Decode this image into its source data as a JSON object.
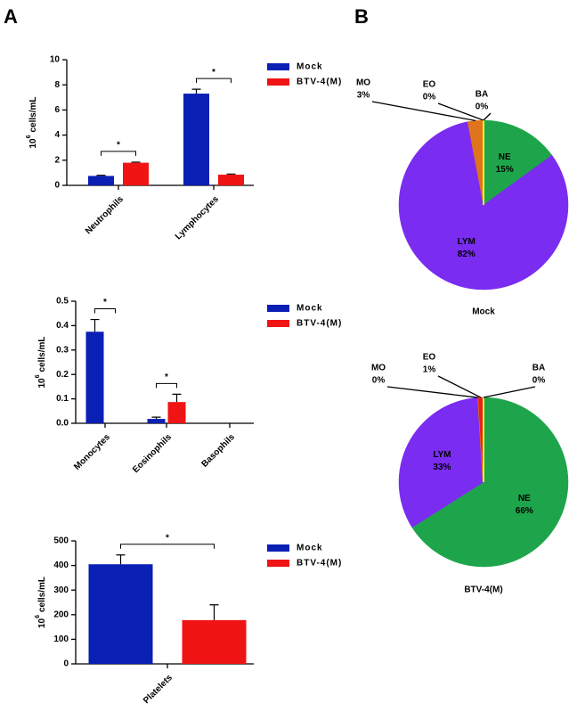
{
  "panel_labels": {
    "a": "A",
    "b": "B"
  },
  "chart_data": [
    {
      "type": "bar",
      "categories": [
        "Neutrophils",
        "Lymphocytes"
      ],
      "y_label": {
        "base": "10",
        "exponent": "6",
        "unit": "cells/mL"
      },
      "series": [
        {
          "name": "Mock",
          "color": "#0a1fb4",
          "values": [
            0.75,
            7.3
          ],
          "errors": [
            0.05,
            0.35
          ]
        },
        {
          "name": "BTV-4(M)",
          "color": "#f01414",
          "values": [
            1.8,
            0.85
          ],
          "errors": [
            0.05,
            0.05
          ]
        }
      ],
      "significance": [
        "*",
        "*"
      ],
      "ylim": [
        0,
        10
      ],
      "yticks": [
        0,
        2,
        4,
        6,
        8,
        10
      ],
      "grid": false,
      "legend": "right"
    },
    {
      "type": "bar",
      "categories": [
        "Monocytes",
        "Eosinophils",
        "Basophils"
      ],
      "y_label": {
        "base": "10",
        "exponent": "6",
        "unit": "cells/mL"
      },
      "series": [
        {
          "name": "Mock",
          "color": "#0a1fb4",
          "values": [
            0.375,
            0.018,
            0
          ],
          "errors": [
            0.05,
            0.007,
            0
          ]
        },
        {
          "name": "BTV-4(M)",
          "color": "#f01414",
          "values": [
            0,
            0.087,
            0
          ],
          "errors": [
            0,
            0.032,
            0
          ]
        }
      ],
      "significance": [
        "*",
        "*",
        null
      ],
      "ylim": [
        0,
        0.5
      ],
      "yticks": [
        {
          "value": 0,
          "label": "0.0"
        },
        0.1,
        0.2,
        0.3,
        0.4,
        0.5
      ],
      "grid": false,
      "legend": "right"
    },
    {
      "type": "bar",
      "categories": [
        "Platelets"
      ],
      "y_label": {
        "base": "10",
        "exponent": "6",
        "unit": "cells/mL"
      },
      "series": [
        {
          "name": "Mock",
          "color": "#0a1fb4",
          "values": [
            405
          ],
          "errors": [
            38
          ]
        },
        {
          "name": "BTV-4(M)",
          "color": "#f01414",
          "values": [
            178
          ],
          "errors": [
            62
          ]
        }
      ],
      "significance": [
        "*"
      ],
      "ylim": [
        0,
        500
      ],
      "yticks": [
        0,
        100,
        200,
        300,
        400,
        500
      ],
      "grid": false,
      "legend": "right"
    },
    {
      "type": "pie",
      "title": "Mock",
      "categories": [
        "NE",
        "LYM",
        "MO",
        "EO",
        "BA"
      ],
      "values": [
        15,
        82,
        3,
        0,
        0
      ],
      "value_labels": [
        "15%",
        "82%",
        "3%",
        "0%",
        "0%"
      ],
      "colors": [
        "#1ea54b",
        "#7a2cf0",
        "#e0741c",
        "#e8231e",
        "#f5f01e"
      ]
    },
    {
      "type": "pie",
      "title": "BTV-4(M)",
      "categories": [
        "NE",
        "LYM",
        "MO",
        "EO",
        "BA"
      ],
      "values": [
        66,
        33,
        0,
        1,
        0
      ],
      "value_labels": [
        "66%",
        "33%",
        "0%",
        "1%",
        "0%"
      ],
      "colors": [
        "#1ea54b",
        "#7a2cf0",
        "#e0741c",
        "#e8231e",
        "#f5f01e"
      ]
    }
  ]
}
